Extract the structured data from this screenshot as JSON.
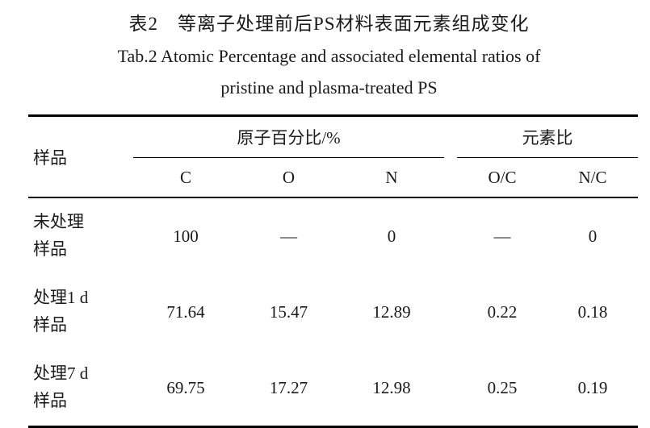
{
  "caption": {
    "zh": "表2　等离子处理前后PS材料表面元素组成变化",
    "en_line1": "Tab.2 Atomic Percentage and associated elemental ratios of",
    "en_line2": "pristine and plasma-treated PS"
  },
  "table": {
    "sample_header": "样品",
    "group_headers": {
      "atomic_percentage": "原子百分比/%",
      "element_ratio": "元素比"
    },
    "sub_headers": [
      "C",
      "O",
      "N",
      "O/C",
      "N/C"
    ],
    "rows": [
      {
        "sample": "未处理\n样品",
        "values": [
          "100",
          "—",
          "0",
          "—",
          "0"
        ]
      },
      {
        "sample": "处理1 d\n样品",
        "values": [
          "71.64",
          "15.47",
          "12.89",
          "0.22",
          "0.18"
        ]
      },
      {
        "sample": "处理7 d\n样品",
        "values": [
          "69.75",
          "17.27",
          "12.98",
          "0.25",
          "0.19"
        ]
      }
    ]
  }
}
